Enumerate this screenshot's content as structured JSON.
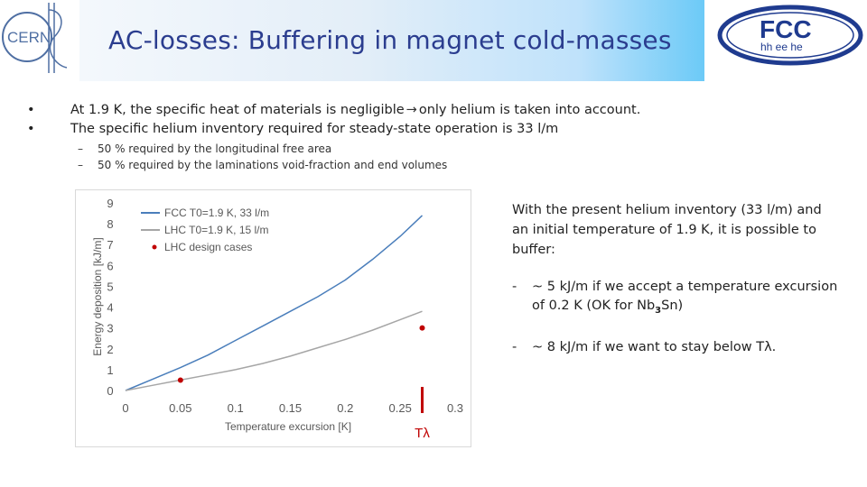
{
  "header": {
    "title": "AC-losses: Buffering in magnet cold-masses",
    "cern_logo_text": "CERN",
    "fcc_logo_text": "FCC",
    "fcc_logo_subtext": "hh ee he"
  },
  "bullets": [
    {
      "symbol": "•",
      "text_before": "At 1.9 K, the specific heat of materials is negligible",
      "arrow": "→",
      "text_after": "only helium is taken into account."
    },
    {
      "symbol": "•",
      "text_before": "The specific helium inventory required for steady-state operation is 33 l/m",
      "arrow": "",
      "text_after": ""
    }
  ],
  "sub_bullets": [
    {
      "symbol": "–",
      "text": "50 % required by the longitudinal free area"
    },
    {
      "symbol": "–",
      "text": "50 % required by the laminations void-fraction and end volumes"
    }
  ],
  "side": {
    "intro": "With the present helium inventory (33 l/m) and an initial temperature of 1.9 K, it is possible to buffer:",
    "items": [
      {
        "dash": "-",
        "text": "~ 5 kJ/m if we accept a temperature excursion of 0.2 K (OK for Nb",
        "sub": "3",
        "tail": "Sn)"
      },
      {
        "dash": "-",
        "text": "~ 8 kJ/m if we want to stay below Tλ.",
        "sub": "",
        "tail": ""
      }
    ]
  },
  "chart_data": {
    "type": "line",
    "xlabel": "Temperature excursion [K]",
    "ylabel": "Energy deposition [kJ/m]",
    "xlim": [
      0,
      0.3
    ],
    "ylim": [
      0,
      9
    ],
    "x_ticks": [
      "0",
      "0.05",
      "0.1",
      "0.15",
      "0.2",
      "0.25",
      "0.3"
    ],
    "y_ticks": [
      "0",
      "1",
      "2",
      "3",
      "4",
      "5",
      "6",
      "7",
      "8",
      "9"
    ],
    "legend_position": "top-left",
    "series": [
      {
        "name": "FCC T0=1.9 K, 33 l/m",
        "color": "#4a7ebb",
        "x": [
          0,
          0.025,
          0.05,
          0.075,
          0.1,
          0.125,
          0.15,
          0.175,
          0.2,
          0.225,
          0.25,
          0.27
        ],
        "y": [
          0,
          0.55,
          1.1,
          1.7,
          2.4,
          3.1,
          3.8,
          4.5,
          5.3,
          6.3,
          7.4,
          8.4
        ]
      },
      {
        "name": "LHC T0=1.9 K, 15 l/m",
        "color": "#a6a6a6",
        "x": [
          0,
          0.025,
          0.05,
          0.075,
          0.1,
          0.125,
          0.15,
          0.175,
          0.2,
          0.225,
          0.25,
          0.27
        ],
        "y": [
          0,
          0.25,
          0.5,
          0.75,
          1.0,
          1.3,
          1.65,
          2.05,
          2.45,
          2.9,
          3.4,
          3.8
        ]
      },
      {
        "name": "LHC design cases",
        "color": "#c00000",
        "type": "scatter",
        "x": [
          0.05,
          0.27
        ],
        "y": [
          0.5,
          3.0
        ]
      }
    ],
    "annotation": {
      "label": "Tλ",
      "x": 0.27,
      "color": "#c00000"
    }
  }
}
